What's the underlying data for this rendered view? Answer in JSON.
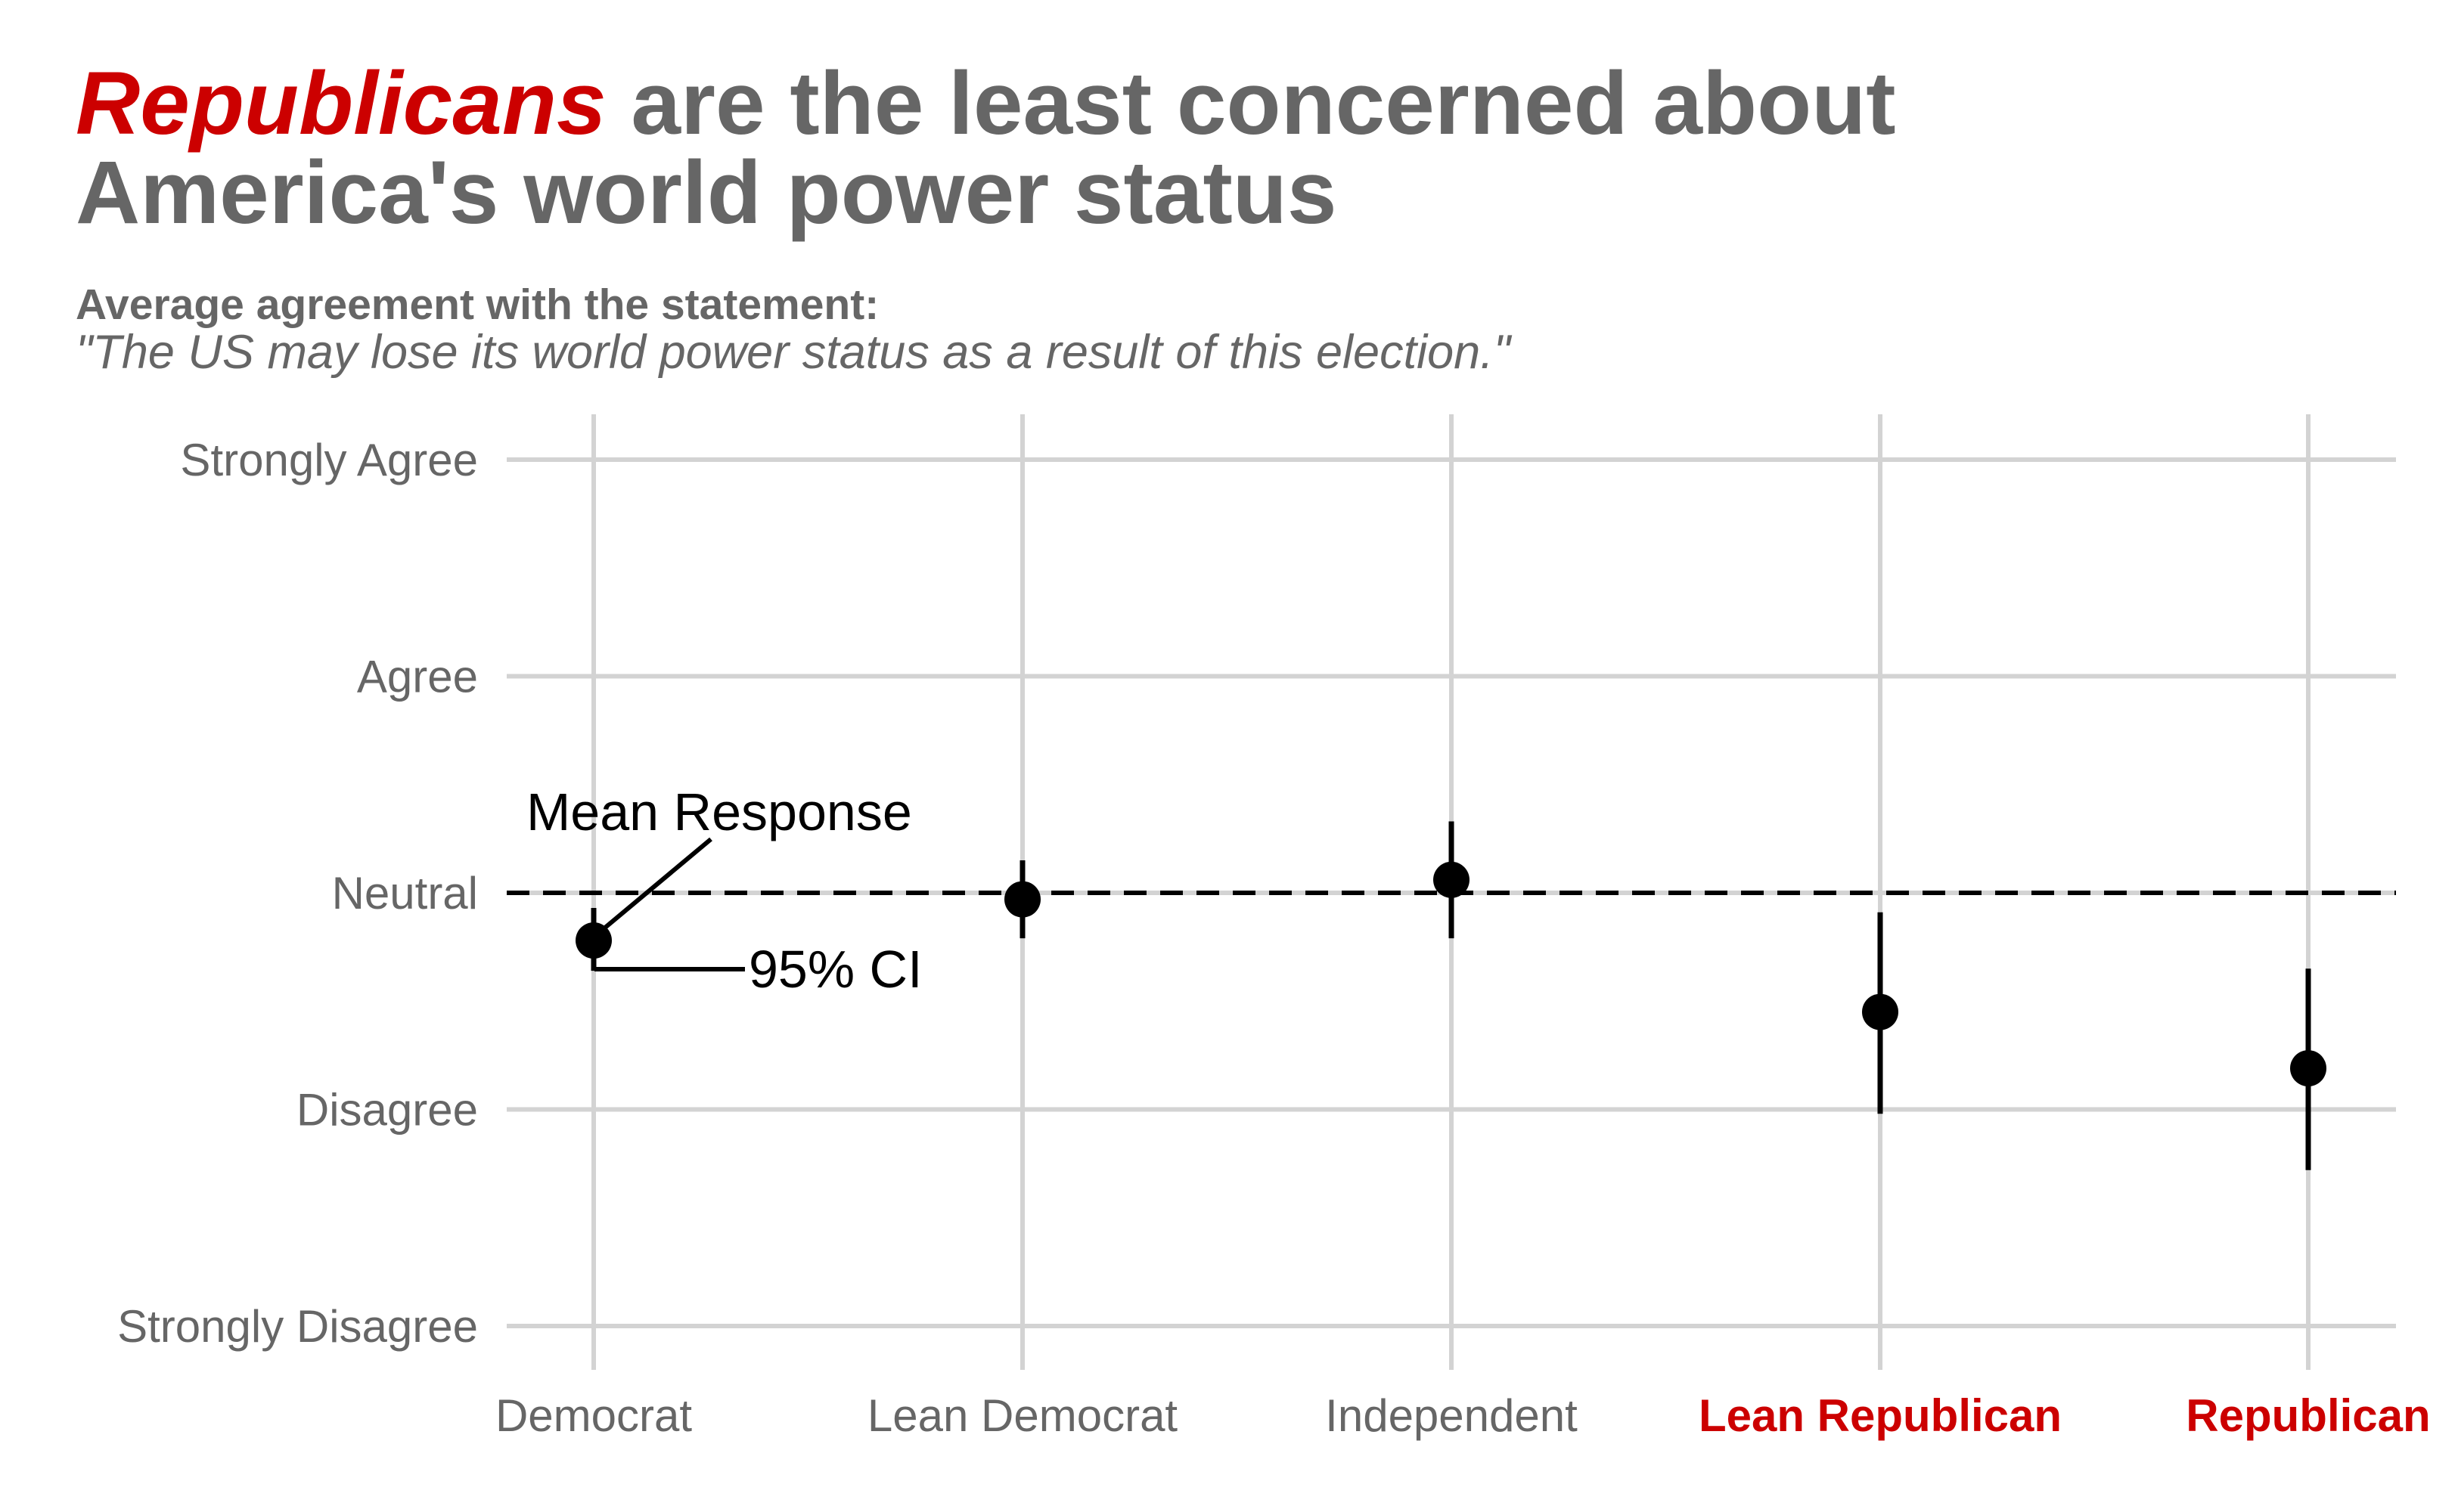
{
  "title": {
    "highlight": "Republicans",
    "rest_line1": " are the least concerned about",
    "line2": "America's world power status"
  },
  "subtitle": "Average agreement with the statement:",
  "statement": "\"The US may lose its world power status as a result of this election.\"",
  "colors": {
    "highlight": "#cc0000",
    "text": "#666666",
    "grid": "#d3d3d3",
    "marks": "#000000"
  },
  "annotations": {
    "mean": "Mean Response",
    "ci": "95% CI"
  },
  "chart_data": {
    "type": "scatter",
    "title": "",
    "xlabel": "",
    "ylabel": "",
    "categories": [
      "Democrat",
      "Lean Democrat",
      "Independent",
      "Lean Republican",
      "Republican"
    ],
    "highlighted_categories": [
      "Lean Republican",
      "Republican"
    ],
    "y_ticks": [
      1,
      2,
      3,
      4,
      5
    ],
    "y_tick_labels": [
      "Strongly Disagree",
      "Disagree",
      "Neutral",
      "Agree",
      "Strongly Agree"
    ],
    "ylim": [
      0.8,
      5.2
    ],
    "reference_line": {
      "y": 3,
      "style": "dashed"
    },
    "grid": true,
    "series": [
      {
        "mean": [
          2.78,
          2.97,
          3.06,
          2.45,
          2.19
        ],
        "lower": [
          2.64,
          2.79,
          2.79,
          1.98,
          1.72
        ],
        "upper": [
          2.93,
          3.15,
          3.33,
          2.91,
          2.65
        ]
      }
    ]
  }
}
